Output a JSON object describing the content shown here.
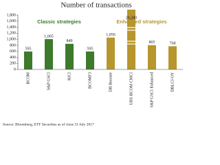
{
  "chart_data": {
    "type": "bar",
    "title": "Number of transactions",
    "categories": [
      "BCOM",
      "S&P GSCI",
      "RICI",
      "BCOMF3",
      "DB Booster",
      "UBS BCOM CMCI",
      "S&P GSCI Enhanced",
      "DBLCI-OY"
    ],
    "values": [
      595,
      1005,
      849,
      595,
      1056,
      20280,
      805,
      768
    ],
    "value_labels": [
      "595",
      "1,005",
      "849",
      "595",
      "1,056",
      "20,280",
      "805",
      "768"
    ],
    "colors": [
      "#3d7a2b",
      "#3d7a2b",
      "#3d7a2b",
      "#3d7a2b",
      "#b8962e",
      "#b8962e",
      "#b8962e",
      "#b8962e"
    ],
    "annotations": [
      {
        "text": "Classic strategies",
        "color": "#3d7a2b"
      },
      {
        "text": "Enhanced strategies",
        "color": "#b8962e"
      }
    ],
    "ylim": [
      0,
      1800
    ],
    "yticks": [
      0,
      200,
      400,
      600,
      800,
      {
        "value": 1000,
        "label": "1,000"
      },
      {
        "value": 1200,
        "label": "1,200"
      },
      {
        "value": 1400,
        "label": "1,400"
      },
      {
        "value": 1600,
        "label": "1,600"
      },
      {
        "value": 1800,
        "label": "1,800"
      }
    ],
    "source": "Source: Bloomberg, ETF Securities as of close 31 July 2017"
  }
}
